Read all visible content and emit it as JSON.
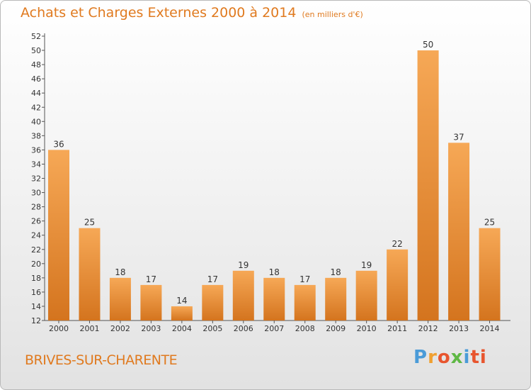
{
  "title": "Achats et Charges Externes 2000 à 2014",
  "subtitle": "(en milliers d'€)",
  "town": "BRIVES-SUR-CHARENTE",
  "logo": {
    "p": "P",
    "r": "r",
    "o": "o",
    "x": "x",
    "i": "i",
    "ti": "ti"
  },
  "colors": {
    "bar_top": "#f6a856",
    "bar_bottom": "#d4741e",
    "title": "#e07a1f"
  },
  "chart_data": {
    "type": "bar",
    "title": "Achats et Charges Externes 2000 à 2014",
    "ylabel": "en milliers d'€",
    "xlabel": "",
    "categories": [
      "2000",
      "2001",
      "2002",
      "2003",
      "2004",
      "2005",
      "2006",
      "2007",
      "2008",
      "2009",
      "2010",
      "2011",
      "2012",
      "2013",
      "2014"
    ],
    "values": [
      36,
      25,
      18,
      17,
      14,
      17,
      19,
      18,
      17,
      18,
      19,
      22,
      50,
      37,
      25
    ],
    "ylim": [
      12,
      52
    ],
    "ytick_step": 2,
    "grid": false
  }
}
